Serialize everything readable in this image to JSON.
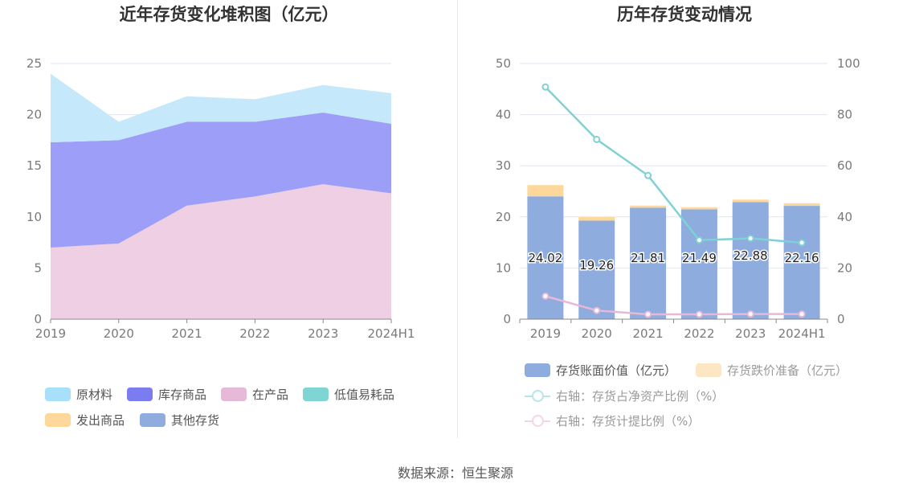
{
  "left_title": "近年存货变化堆积图（亿元）",
  "right_title": "历年存货变动情况",
  "source": "数据来源：恒生聚源",
  "chart_data": [
    {
      "type": "area",
      "stacked": true,
      "title": "近年存货变化堆积图（亿元）",
      "categories": [
        "2019",
        "2020",
        "2021",
        "2022",
        "2023",
        "2024H1"
      ],
      "ylim": [
        0,
        25
      ],
      "yticks": [
        0,
        5,
        10,
        15,
        20,
        25
      ],
      "grid": true,
      "legend_position": "bottom",
      "series": [
        {
          "name": "在产品",
          "color": "#efcfe3",
          "values": [
            7.0,
            7.4,
            11.1,
            12.0,
            13.2,
            12.3
          ]
        },
        {
          "name": "库存商品",
          "color": "#9d9ef7",
          "values": [
            10.3,
            10.1,
            8.2,
            7.3,
            7.0,
            6.8
          ]
        },
        {
          "name": "原材料",
          "color": "#c5e9fb",
          "values": [
            6.7,
            1.8,
            2.5,
            2.2,
            2.7,
            3.0
          ]
        }
      ],
      "legend": [
        {
          "name": "原材料",
          "color": "#a8e0fa"
        },
        {
          "name": "库存商品",
          "color": "#7b7cf0"
        },
        {
          "name": "在产品",
          "color": "#e6b9d9"
        },
        {
          "name": "低值易耗品",
          "color": "#7fd4d4"
        },
        {
          "name": "发出商品",
          "color": "#fdd89a"
        },
        {
          "name": "其他存货",
          "color": "#8eacdd"
        }
      ]
    },
    {
      "type": "bar",
      "title": "历年存货变动情况",
      "categories": [
        "2019",
        "2020",
        "2021",
        "2022",
        "2023",
        "2024H1"
      ],
      "ylim": [
        0,
        50
      ],
      "yticks": [
        0,
        10,
        20,
        30,
        40,
        50
      ],
      "y2lim": [
        0,
        100
      ],
      "y2ticks": [
        0,
        20,
        40,
        60,
        80,
        100
      ],
      "grid": true,
      "legend_position": "bottom",
      "series": [
        {
          "name": "存货账面价值（亿元）",
          "type": "bar",
          "stack": "inv",
          "color": "#8eacdd",
          "values": [
            24.02,
            19.26,
            21.81,
            21.49,
            22.88,
            22.16
          ],
          "labels": [
            "24.02",
            "19.26",
            "21.81",
            "21.49",
            "22.88",
            "22.16"
          ]
        },
        {
          "name": "存货跌价准备（亿元）",
          "type": "bar",
          "stack": "inv",
          "color": "#fdd89a",
          "values": [
            2.2,
            0.7,
            0.4,
            0.4,
            0.5,
            0.5
          ]
        },
        {
          "name": "右轴：存货占净资产比例（%）",
          "type": "line",
          "axis": "right",
          "color": "#7fd1d6",
          "values": [
            90.8,
            70.3,
            56.2,
            30.9,
            31.6,
            29.9
          ]
        },
        {
          "name": "右轴：存货计提比例（%）",
          "type": "line",
          "axis": "right",
          "color": "#e8b8d8",
          "values": [
            9.0,
            3.4,
            1.9,
            1.9,
            2.0,
            2.0
          ]
        }
      ]
    }
  ]
}
